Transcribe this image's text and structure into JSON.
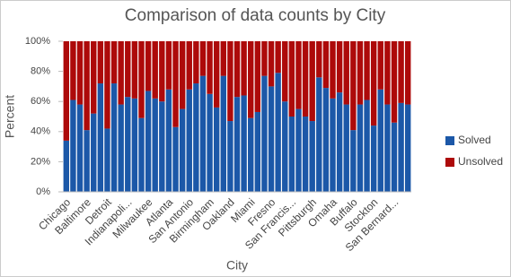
{
  "chart_data": {
    "type": "stacked_bar_percent",
    "title": "Comparison of data counts by City",
    "x_label": "City",
    "y_label": "Percent",
    "categories": [
      "Chicago",
      null,
      null,
      "Baltimore",
      null,
      null,
      "Detroit",
      null,
      null,
      "Indianapoli...",
      null,
      null,
      "Milwaukee",
      null,
      null,
      "Atlanta",
      null,
      null,
      "San Antonio",
      null,
      null,
      "Birmingham",
      null,
      null,
      "Oakland",
      null,
      null,
      "Miami",
      null,
      null,
      "Fresno",
      null,
      null,
      "San Francis...",
      null,
      null,
      "Pittsburgh",
      null,
      null,
      "Omaha",
      null,
      null,
      "Buffalo",
      null,
      null,
      "Stockton",
      null,
      null,
      "San Bernard...",
      null,
      null
    ],
    "series": [
      {
        "name": "Solved",
        "color": "#1c58a8",
        "values": [
          34,
          61,
          58,
          41,
          52,
          72,
          42,
          72,
          58,
          63,
          62,
          49,
          67,
          62,
          60,
          68,
          43,
          55,
          68,
          72,
          77,
          65,
          56,
          77,
          47,
          63,
          64,
          49,
          53,
          77,
          70,
          79,
          60,
          50,
          55,
          50,
          47,
          76,
          69,
          62,
          66,
          58,
          41,
          58,
          61,
          44,
          68,
          58,
          46,
          59,
          58
        ]
      },
      {
        "name": "Unsolved",
        "color": "#ad0a0a",
        "values": [
          66,
          39,
          42,
          59,
          48,
          28,
          58,
          28,
          42,
          37,
          38,
          51,
          33,
          38,
          40,
          32,
          57,
          45,
          32,
          28,
          23,
          35,
          44,
          23,
          53,
          37,
          36,
          51,
          47,
          23,
          30,
          21,
          40,
          50,
          45,
          50,
          53,
          24,
          31,
          38,
          34,
          42,
          59,
          42,
          39,
          56,
          32,
          42,
          54,
          41,
          42
        ]
      }
    ],
    "ylim": [
      0,
      100
    ],
    "yticks": [
      {
        "value": 0,
        "label": "0%"
      },
      {
        "value": 20,
        "label": "20%"
      },
      {
        "value": 40,
        "label": "40%"
      },
      {
        "value": 60,
        "label": "60%"
      },
      {
        "value": 80,
        "label": "80%"
      },
      {
        "value": 100,
        "label": "100%"
      }
    ],
    "legend_position": "right"
  }
}
